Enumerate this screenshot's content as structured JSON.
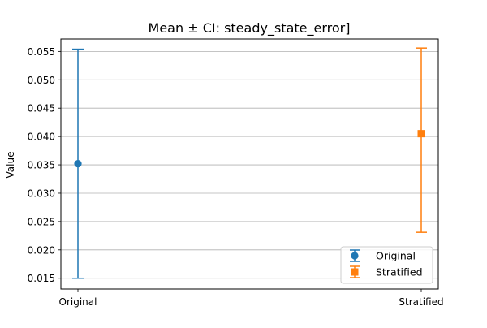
{
  "chart_data": {
    "type": "errorbar",
    "title": "Mean ± CI: steady_state_error]",
    "xlabel": "",
    "ylabel": "Value",
    "categories": [
      "Original",
      "Stratified"
    ],
    "ylim": [
      0.0131,
      0.0572
    ],
    "yticks": [
      0.015,
      0.02,
      0.025,
      0.03,
      0.035,
      0.04,
      0.045,
      0.05,
      0.055
    ],
    "ytick_labels": [
      "0.015",
      "0.020",
      "0.025",
      "0.030",
      "0.035",
      "0.040",
      "0.045",
      "0.050",
      "0.055"
    ],
    "grid": "horizontal",
    "legend_position": "bottom-right",
    "series": [
      {
        "name": "Original",
        "x": "Original",
        "mean": 0.0352,
        "ci_low": 0.015,
        "ci_high": 0.0554,
        "marker": "circle",
        "color": "#1f77b4"
      },
      {
        "name": "Stratified",
        "x": "Stratified",
        "mean": 0.0405,
        "ci_low": 0.0231,
        "ci_high": 0.0556,
        "marker": "square",
        "color": "#ff7f0e"
      }
    ]
  }
}
